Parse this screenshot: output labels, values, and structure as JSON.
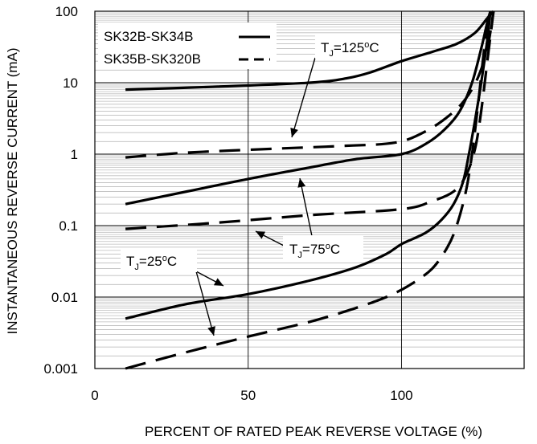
{
  "chart_data": {
    "type": "line",
    "title": "",
    "xlabel": "PERCENT OF RATED PEAK REVERSE VOLTAGE (%)",
    "ylabel": "INSTANTANEOUS REVERSE CURRENT (mA)",
    "xlim": [
      0,
      140
    ],
    "ylim": [
      0.001,
      100
    ],
    "yscale": "log",
    "x_ticks": [
      "0",
      "50",
      "100"
    ],
    "y_ticks": [
      "0.001",
      "0.01",
      "0.1",
      "1",
      "10",
      "100"
    ],
    "grid": true,
    "legend": {
      "placement": "top-left",
      "entries": [
        {
          "label": "SK32B-SK34B",
          "style": "solid"
        },
        {
          "label": "SK35B-SK320B",
          "style": "dashed"
        }
      ]
    },
    "annotations": [
      {
        "main": "T",
        "sub": "J",
        "rest": "=125",
        "sup": "o",
        "unit": "C"
      },
      {
        "main": "T",
        "sub": "J",
        "rest": "=75",
        "sup": "o",
        "unit": "C"
      },
      {
        "main": "T",
        "sub": "J",
        "rest": "=25",
        "sup": "o",
        "unit": "C"
      }
    ],
    "series": [
      {
        "group": "SK32B-SK34B",
        "condition": "TJ=125C",
        "style": "solid",
        "points": [
          [
            10,
            8
          ],
          [
            40,
            8.8
          ],
          [
            70,
            10
          ],
          [
            82,
            11.5
          ],
          [
            90,
            14
          ],
          [
            100,
            20
          ],
          [
            110,
            27
          ],
          [
            118,
            35
          ],
          [
            124,
            50
          ],
          [
            128,
            80
          ],
          [
            130,
            100
          ]
        ]
      },
      {
        "group": "SK32B-SK34B",
        "condition": "TJ=75C",
        "style": "solid",
        "points": [
          [
            10,
            0.2
          ],
          [
            30,
            0.3
          ],
          [
            50,
            0.45
          ],
          [
            70,
            0.65
          ],
          [
            85,
            0.85
          ],
          [
            100,
            1.0
          ],
          [
            108,
            1.4
          ],
          [
            114,
            2.2
          ],
          [
            119,
            4
          ],
          [
            123,
            10
          ],
          [
            126,
            30
          ],
          [
            128,
            70
          ],
          [
            129,
            100
          ]
        ]
      },
      {
        "group": "SK32B-SK34B",
        "condition": "TJ=25C",
        "style": "solid",
        "points": [
          [
            10,
            0.005
          ],
          [
            30,
            0.008
          ],
          [
            50,
            0.011
          ],
          [
            70,
            0.017
          ],
          [
            85,
            0.026
          ],
          [
            95,
            0.04
          ],
          [
            100,
            0.055
          ],
          [
            108,
            0.08
          ],
          [
            113,
            0.12
          ],
          [
            117,
            0.2
          ],
          [
            120,
            0.4
          ],
          [
            122,
            1
          ],
          [
            124,
            3
          ],
          [
            126,
            10
          ],
          [
            128,
            40
          ],
          [
            129,
            100
          ]
        ]
      },
      {
        "group": "SK35B-SK320B",
        "condition": "TJ=125C",
        "style": "dashed",
        "points": [
          [
            10,
            0.9
          ],
          [
            30,
            1.05
          ],
          [
            60,
            1.2
          ],
          [
            80,
            1.3
          ],
          [
            98,
            1.45
          ],
          [
            108,
            2.1
          ],
          [
            116,
            3.6
          ],
          [
            121,
            6
          ],
          [
            125,
            12
          ],
          [
            128,
            30
          ],
          [
            130,
            100
          ]
        ]
      },
      {
        "group": "SK35B-SK320B",
        "condition": "TJ=75C",
        "style": "dashed",
        "points": [
          [
            10,
            0.09
          ],
          [
            40,
            0.11
          ],
          [
            70,
            0.14
          ],
          [
            100,
            0.17
          ],
          [
            110,
            0.22
          ],
          [
            117,
            0.3
          ],
          [
            121,
            0.5
          ],
          [
            124,
            1.2
          ],
          [
            126,
            4
          ],
          [
            128,
            20
          ],
          [
            130,
            100
          ]
        ]
      },
      {
        "group": "SK35B-SK320B",
        "condition": "TJ=25C",
        "style": "dashed",
        "points": [
          [
            10,
            0.001
          ],
          [
            30,
            0.0017
          ],
          [
            50,
            0.0028
          ],
          [
            70,
            0.0045
          ],
          [
            85,
            0.007
          ],
          [
            95,
            0.01
          ],
          [
            103,
            0.015
          ],
          [
            110,
            0.025
          ],
          [
            115,
            0.05
          ],
          [
            118,
            0.1
          ],
          [
            121,
            0.3
          ],
          [
            123,
            1
          ],
          [
            125,
            5
          ],
          [
            127,
            30
          ],
          [
            129,
            100
          ]
        ]
      }
    ]
  }
}
